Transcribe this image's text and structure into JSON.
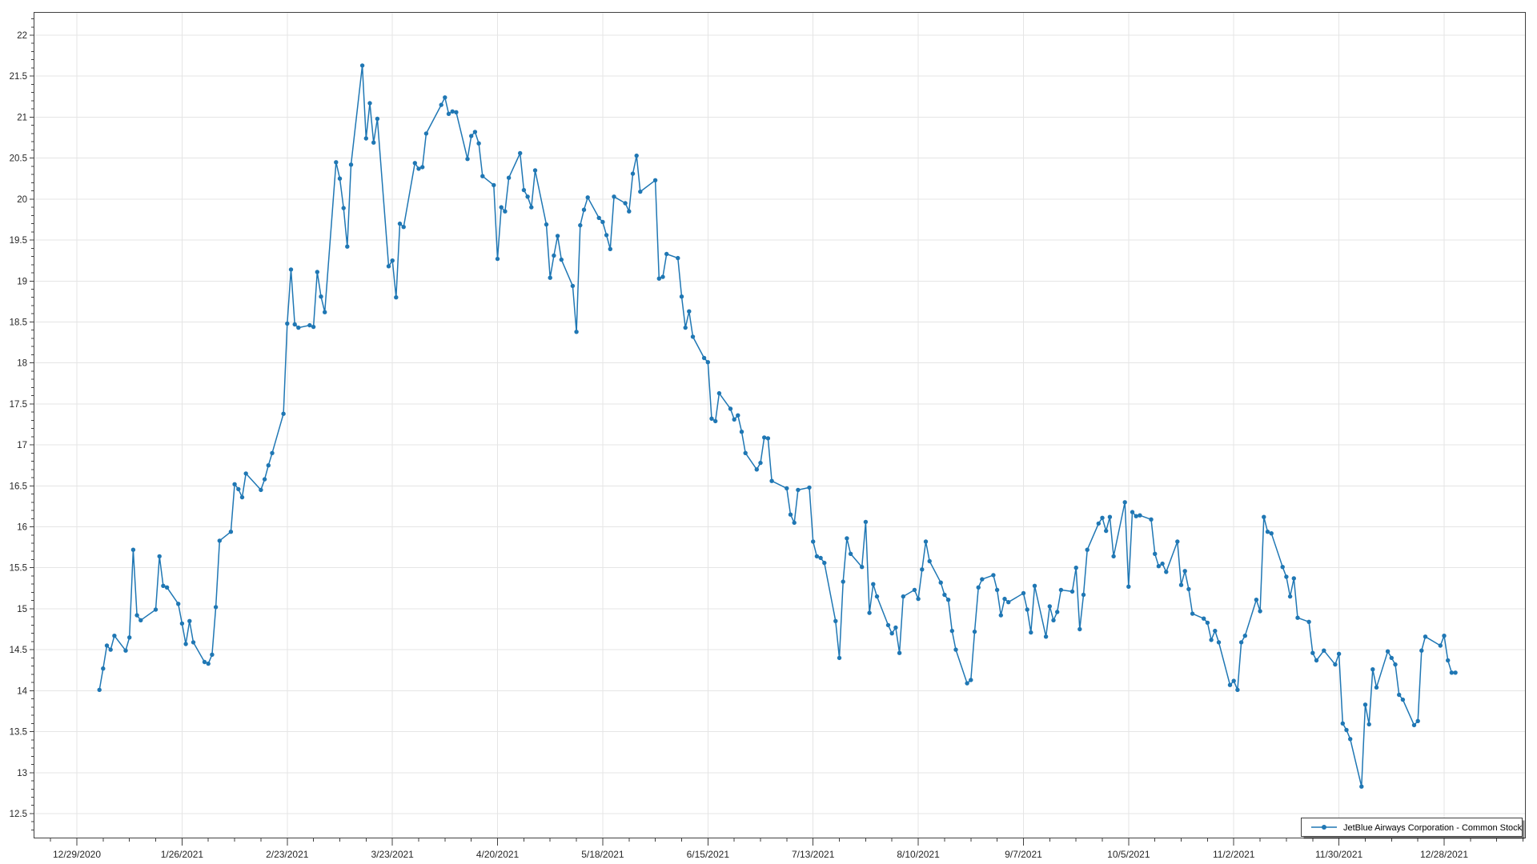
{
  "chart": {
    "legend_label": "JetBlue Airways Corporation - Common Stock",
    "series_color": "#1f77b4",
    "grid_color": "#e5e5e5",
    "axis_color": "#404040",
    "label_color": "#262626",
    "background_color": "#ffffff",
    "legend_position": "bottom-right"
  },
  "chart_data": {
    "type": "line",
    "title": "",
    "xlabel": "",
    "ylabel": "",
    "legend": "JetBlue Airways Corporation - Common Stock",
    "grid": true,
    "ylim": [
      12.2,
      22.28
    ],
    "y_tick_step": 0.5,
    "y_tick_labels": [
      "22",
      "21.5",
      "21",
      "20.5",
      "20",
      "19.5",
      "19",
      "18.5",
      "18",
      "17.5",
      "17",
      "16.5",
      "16",
      "15.5",
      "15",
      "14.5",
      "14",
      "13.5",
      "13",
      "12.5"
    ],
    "x_tick_labels": [
      "12/29/2020",
      "1/26/2021",
      "2/23/2021",
      "3/23/2021",
      "4/20/2021",
      "5/18/2021",
      "6/15/2021",
      "7/13/2021",
      "8/10/2021",
      "9/7/2021",
      "10/5/2021",
      "11/2/2021",
      "11/30/2021",
      "12/28/2021"
    ],
    "points": [
      [
        "1/4/2021",
        14.01
      ],
      [
        "1/5/2021",
        14.27
      ],
      [
        "1/6/2021",
        14.55
      ],
      [
        "1/7/2021",
        14.5
      ],
      [
        "1/8/2021",
        14.67
      ],
      [
        "1/11/2021",
        14.49
      ],
      [
        "1/12/2021",
        14.65
      ],
      [
        "1/13/2021",
        15.72
      ],
      [
        "1/14/2021",
        14.92
      ],
      [
        "1/15/2021",
        14.86
      ],
      [
        "1/19/2021",
        14.99
      ],
      [
        "1/20/2021",
        15.64
      ],
      [
        "1/21/2021",
        15.28
      ],
      [
        "1/22/2021",
        15.26
      ],
      [
        "1/25/2021",
        15.06
      ],
      [
        "1/26/2021",
        14.82
      ],
      [
        "1/27/2021",
        14.57
      ],
      [
        "1/28/2021",
        14.85
      ],
      [
        "1/29/2021",
        14.59
      ],
      [
        "2/1/2021",
        14.35
      ],
      [
        "2/2/2021",
        14.33
      ],
      [
        "2/3/2021",
        14.44
      ],
      [
        "2/4/2021",
        15.02
      ],
      [
        "2/5/2021",
        15.83
      ],
      [
        "2/8/2021",
        15.94
      ],
      [
        "2/9/2021",
        16.52
      ],
      [
        "2/10/2021",
        16.46
      ],
      [
        "2/11/2021",
        16.36
      ],
      [
        "2/12/2021",
        16.65
      ],
      [
        "2/16/2021",
        16.45
      ],
      [
        "2/17/2021",
        16.58
      ],
      [
        "2/18/2021",
        16.75
      ],
      [
        "2/19/2021",
        16.9
      ],
      [
        "2/22/2021",
        17.38
      ],
      [
        "2/23/2021",
        18.48
      ],
      [
        "2/24/2021",
        19.14
      ],
      [
        "2/25/2021",
        18.47
      ],
      [
        "2/26/2021",
        18.43
      ],
      [
        "3/1/2021",
        18.46
      ],
      [
        "3/2/2021",
        18.44
      ],
      [
        "3/3/2021",
        19.11
      ],
      [
        "3/4/2021",
        18.81
      ],
      [
        "3/5/2021",
        18.62
      ],
      [
        "3/8/2021",
        20.45
      ],
      [
        "3/9/2021",
        20.25
      ],
      [
        "3/10/2021",
        19.89
      ],
      [
        "3/11/2021",
        19.42
      ],
      [
        "3/12/2021",
        20.42
      ],
      [
        "3/15/2021",
        21.63
      ],
      [
        "3/16/2021",
        20.74
      ],
      [
        "3/17/2021",
        21.17
      ],
      [
        "3/18/2021",
        20.69
      ],
      [
        "3/19/2021",
        20.98
      ],
      [
        "3/22/2021",
        19.18
      ],
      [
        "3/23/2021",
        19.25
      ],
      [
        "3/24/2021",
        18.8
      ],
      [
        "3/25/2021",
        19.7
      ],
      [
        "3/26/2021",
        19.66
      ],
      [
        "3/29/2021",
        20.44
      ],
      [
        "3/30/2021",
        20.37
      ],
      [
        "3/31/2021",
        20.39
      ],
      [
        "4/1/2021",
        20.8
      ],
      [
        "4/5/2021",
        21.15
      ],
      [
        "4/6/2021",
        21.24
      ],
      [
        "4/7/2021",
        21.04
      ],
      [
        "4/8/2021",
        21.07
      ],
      [
        "4/9/2021",
        21.06
      ],
      [
        "4/12/2021",
        20.49
      ],
      [
        "4/13/2021",
        20.77
      ],
      [
        "4/14/2021",
        20.82
      ],
      [
        "4/15/2021",
        20.68
      ],
      [
        "4/16/2021",
        20.28
      ],
      [
        "4/19/2021",
        20.17
      ],
      [
        "4/20/2021",
        19.27
      ],
      [
        "4/21/2021",
        19.9
      ],
      [
        "4/22/2021",
        19.85
      ],
      [
        "4/23/2021",
        20.26
      ],
      [
        "4/26/2021",
        20.56
      ],
      [
        "4/27/2021",
        20.11
      ],
      [
        "4/28/2021",
        20.03
      ],
      [
        "4/29/2021",
        19.9
      ],
      [
        "4/30/2021",
        20.35
      ],
      [
        "5/3/2021",
        19.69
      ],
      [
        "5/4/2021",
        19.04
      ],
      [
        "5/5/2021",
        19.31
      ],
      [
        "5/6/2021",
        19.55
      ],
      [
        "5/7/2021",
        19.26
      ],
      [
        "5/10/2021",
        18.94
      ],
      [
        "5/11/2021",
        18.38
      ],
      [
        "5/12/2021",
        19.68
      ],
      [
        "5/13/2021",
        19.87
      ],
      [
        "5/14/2021",
        20.02
      ],
      [
        "5/17/2021",
        19.77
      ],
      [
        "5/18/2021",
        19.72
      ],
      [
        "5/19/2021",
        19.56
      ],
      [
        "5/20/2021",
        19.39
      ],
      [
        "5/21/2021",
        20.03
      ],
      [
        "5/24/2021",
        19.95
      ],
      [
        "5/25/2021",
        19.85
      ],
      [
        "5/26/2021",
        20.31
      ],
      [
        "5/27/2021",
        20.53
      ],
      [
        "5/28/2021",
        20.09
      ],
      [
        "6/1/2021",
        20.23
      ],
      [
        "6/2/2021",
        19.03
      ],
      [
        "6/3/2021",
        19.05
      ],
      [
        "6/4/2021",
        19.33
      ],
      [
        "6/7/2021",
        19.28
      ],
      [
        "6/8/2021",
        18.81
      ],
      [
        "6/9/2021",
        18.43
      ],
      [
        "6/10/2021",
        18.63
      ],
      [
        "6/11/2021",
        18.32
      ],
      [
        "6/14/2021",
        18.06
      ],
      [
        "6/15/2021",
        18.01
      ],
      [
        "6/16/2021",
        17.32
      ],
      [
        "6/17/2021",
        17.29
      ],
      [
        "6/18/2021",
        17.63
      ],
      [
        "6/21/2021",
        17.44
      ],
      [
        "6/22/2021",
        17.31
      ],
      [
        "6/23/2021",
        17.36
      ],
      [
        "6/24/2021",
        17.16
      ],
      [
        "6/25/2021",
        16.9
      ],
      [
        "6/28/2021",
        16.7
      ],
      [
        "6/29/2021",
        16.78
      ],
      [
        "6/30/2021",
        17.09
      ],
      [
        "7/1/2021",
        17.08
      ],
      [
        "7/2/2021",
        16.56
      ],
      [
        "7/6/2021",
        16.47
      ],
      [
        "7/7/2021",
        16.15
      ],
      [
        "7/8/2021",
        16.05
      ],
      [
        "7/9/2021",
        16.45
      ],
      [
        "7/12/2021",
        16.48
      ],
      [
        "7/13/2021",
        15.82
      ],
      [
        "7/14/2021",
        15.64
      ],
      [
        "7/15/2021",
        15.62
      ],
      [
        "7/16/2021",
        15.56
      ],
      [
        "7/19/2021",
        14.85
      ],
      [
        "7/20/2021",
        14.4
      ],
      [
        "7/21/2021",
        15.33
      ],
      [
        "7/22/2021",
        15.86
      ],
      [
        "7/23/2021",
        15.67
      ],
      [
        "7/26/2021",
        15.51
      ],
      [
        "7/27/2021",
        16.06
      ],
      [
        "7/28/2021",
        14.95
      ],
      [
        "7/29/2021",
        15.3
      ],
      [
        "7/30/2021",
        15.15
      ],
      [
        "8/2/2021",
        14.8
      ],
      [
        "8/3/2021",
        14.7
      ],
      [
        "8/4/2021",
        14.77
      ],
      [
        "8/5/2021",
        14.46
      ],
      [
        "8/6/2021",
        15.15
      ],
      [
        "8/9/2021",
        15.23
      ],
      [
        "8/10/2021",
        15.12
      ],
      [
        "8/11/2021",
        15.48
      ],
      [
        "8/12/2021",
        15.82
      ],
      [
        "8/13/2021",
        15.58
      ],
      [
        "8/16/2021",
        15.32
      ],
      [
        "8/17/2021",
        15.17
      ],
      [
        "8/18/2021",
        15.11
      ],
      [
        "8/19/2021",
        14.73
      ],
      [
        "8/20/2021",
        14.5
      ],
      [
        "8/23/2021",
        14.09
      ],
      [
        "8/24/2021",
        14.13
      ],
      [
        "8/25/2021",
        14.72
      ],
      [
        "8/26/2021",
        15.26
      ],
      [
        "8/27/2021",
        15.36
      ],
      [
        "8/30/2021",
        15.41
      ],
      [
        "8/31/2021",
        15.23
      ],
      [
        "9/1/2021",
        14.92
      ],
      [
        "9/2/2021",
        15.12
      ],
      [
        "9/3/2021",
        15.08
      ],
      [
        "9/7/2021",
        15.19
      ],
      [
        "9/8/2021",
        14.99
      ],
      [
        "9/9/2021",
        14.71
      ],
      [
        "9/10/2021",
        15.28
      ],
      [
        "9/13/2021",
        14.66
      ],
      [
        "9/14/2021",
        15.03
      ],
      [
        "9/15/2021",
        14.86
      ],
      [
        "9/16/2021",
        14.96
      ],
      [
        "9/17/2021",
        15.23
      ],
      [
        "9/20/2021",
        15.21
      ],
      [
        "9/21/2021",
        15.5
      ],
      [
        "9/22/2021",
        14.75
      ],
      [
        "9/23/2021",
        15.17
      ],
      [
        "9/24/2021",
        15.72
      ],
      [
        "9/27/2021",
        16.04
      ],
      [
        "9/28/2021",
        16.11
      ],
      [
        "9/29/2021",
        15.95
      ],
      [
        "9/30/2021",
        16.12
      ],
      [
        "10/1/2021",
        15.64
      ],
      [
        "10/4/2021",
        16.3
      ],
      [
        "10/5/2021",
        15.27
      ],
      [
        "10/6/2021",
        16.18
      ],
      [
        "10/7/2021",
        16.13
      ],
      [
        "10/8/2021",
        16.14
      ],
      [
        "10/11/2021",
        16.09
      ],
      [
        "10/12/2021",
        15.67
      ],
      [
        "10/13/2021",
        15.52
      ],
      [
        "10/14/2021",
        15.55
      ],
      [
        "10/15/2021",
        15.45
      ],
      [
        "10/18/2021",
        15.82
      ],
      [
        "10/19/2021",
        15.29
      ],
      [
        "10/20/2021",
        15.46
      ],
      [
        "10/21/2021",
        15.24
      ],
      [
        "10/22/2021",
        14.94
      ],
      [
        "10/25/2021",
        14.88
      ],
      [
        "10/26/2021",
        14.83
      ],
      [
        "10/27/2021",
        14.62
      ],
      [
        "10/28/2021",
        14.73
      ],
      [
        "10/29/2021",
        14.59
      ],
      [
        "11/1/2021",
        14.07
      ],
      [
        "11/2/2021",
        14.12
      ],
      [
        "11/3/2021",
        14.01
      ],
      [
        "11/4/2021",
        14.59
      ],
      [
        "11/5/2021",
        14.67
      ],
      [
        "11/8/2021",
        15.11
      ],
      [
        "11/9/2021",
        14.97
      ],
      [
        "11/10/2021",
        16.12
      ],
      [
        "11/11/2021",
        15.94
      ],
      [
        "11/12/2021",
        15.92
      ],
      [
        "11/15/2021",
        15.51
      ],
      [
        "11/16/2021",
        15.39
      ],
      [
        "11/17/2021",
        15.15
      ],
      [
        "11/18/2021",
        15.37
      ],
      [
        "11/19/2021",
        14.89
      ],
      [
        "11/22/2021",
        14.84
      ],
      [
        "11/23/2021",
        14.46
      ],
      [
        "11/24/2021",
        14.37
      ],
      [
        "11/26/2021",
        14.49
      ],
      [
        "11/29/2021",
        14.32
      ],
      [
        "11/30/2021",
        14.45
      ],
      [
        "12/1/2021",
        13.6
      ],
      [
        "12/2/2021",
        13.52
      ],
      [
        "12/3/2021",
        13.41
      ],
      [
        "12/6/2021",
        12.83
      ],
      [
        "12/7/2021",
        13.83
      ],
      [
        "12/8/2021",
        13.59
      ],
      [
        "12/9/2021",
        14.26
      ],
      [
        "12/10/2021",
        14.04
      ],
      [
        "12/13/2021",
        14.48
      ],
      [
        "12/14/2021",
        14.4
      ],
      [
        "12/15/2021",
        14.32
      ],
      [
        "12/16/2021",
        13.95
      ],
      [
        "12/17/2021",
        13.89
      ],
      [
        "12/20/2021",
        13.58
      ],
      [
        "12/21/2021",
        13.63
      ],
      [
        "12/22/2021",
        14.49
      ],
      [
        "12/23/2021",
        14.66
      ],
      [
        "12/27/2021",
        14.55
      ],
      [
        "12/28/2021",
        14.67
      ],
      [
        "12/29/2021",
        14.37
      ],
      [
        "12/30/2021",
        14.22
      ],
      [
        "12/31/2021",
        14.22
      ]
    ]
  }
}
